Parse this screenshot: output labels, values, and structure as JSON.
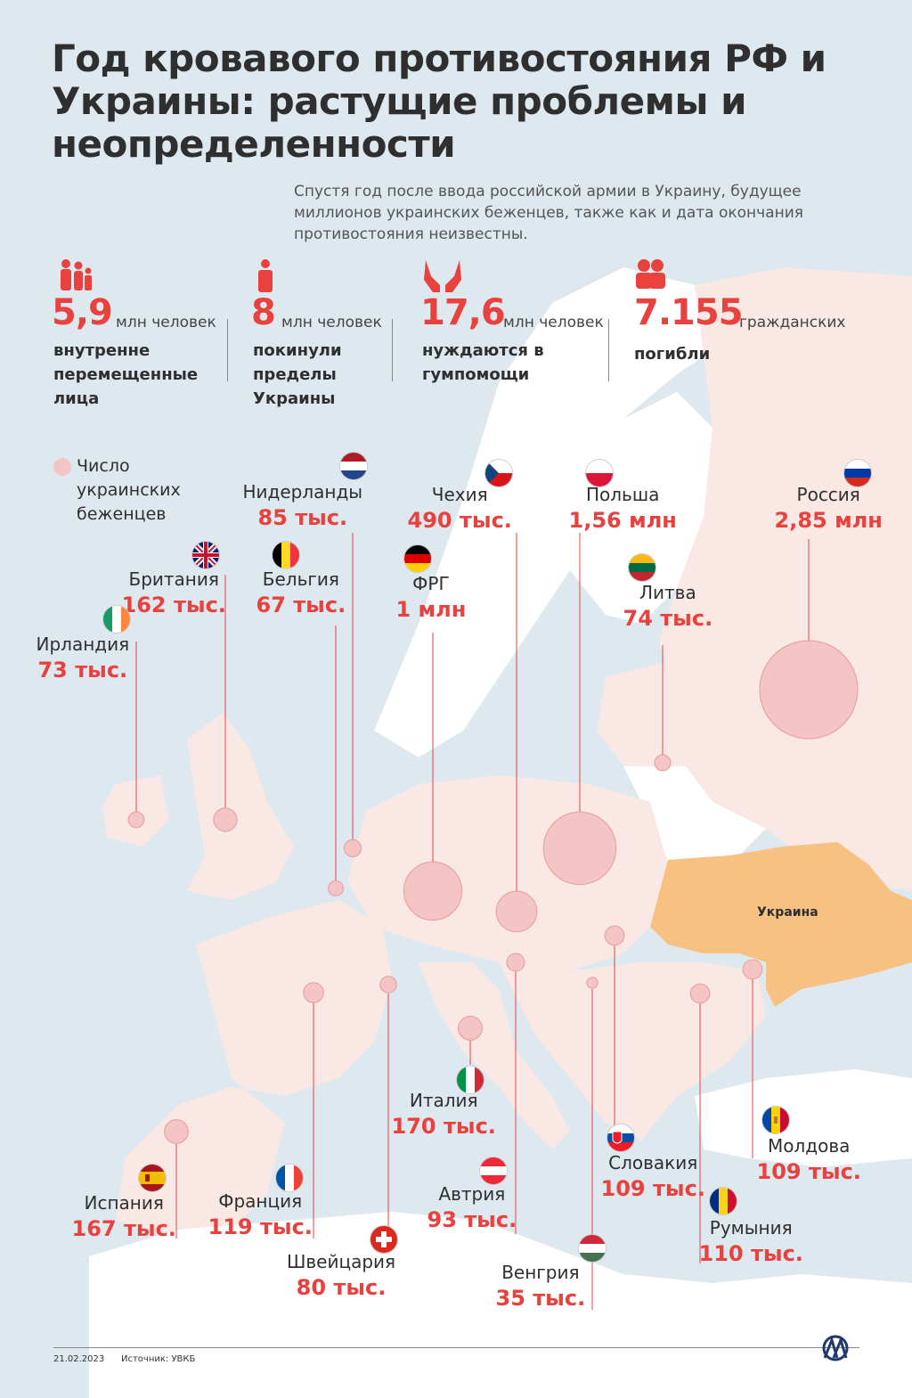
{
  "title": "Год кровавого противостояния РФ и Украины: растущие проблемы и неопределенности",
  "subtitle": "Спустя год после ввода российской армии в Украину, будущее миллионов украинских беженцев, также как и дата окончания противостояния неизвестны.",
  "stats": [
    {
      "value": "5,9",
      "unit": "млн человек",
      "label": "внутренне перемещенные лица",
      "icon": "family-icon"
    },
    {
      "value": "8",
      "unit": "млн человек",
      "label": "покинули пределы Украины",
      "icon": "person-luggage-icon"
    },
    {
      "value": "17,6",
      "unit": "млн человек",
      "label": "нуждаются в гумпомощи",
      "icon": "hands-icon"
    },
    {
      "value": "7.155",
      "unit": "гражданских",
      "label": "погибли",
      "icon": "people-icon"
    }
  ],
  "legend": {
    "label": "Число украинских беженцев"
  },
  "map_label": "Украина",
  "countries": [
    {
      "name": "Нидерланды",
      "value": "85 тыс.",
      "flag": "netherlands",
      "refugees_thousands": 85
    },
    {
      "name": "Чехия",
      "value": "490 тыс.",
      "flag": "czechia",
      "refugees_thousands": 490
    },
    {
      "name": "Польша",
      "value": "1,56 млн",
      "flag": "poland",
      "refugees_thousands": 1560
    },
    {
      "name": "Россия",
      "value": "2,85 млн",
      "flag": "russia",
      "refugees_thousands": 2850
    },
    {
      "name": "Британия",
      "value": "162 тыс.",
      "flag": "uk",
      "refugees_thousands": 162
    },
    {
      "name": "Бельгия",
      "value": "67 тыс.",
      "flag": "belgium",
      "refugees_thousands": 67
    },
    {
      "name": "ФРГ",
      "value": "1 млн",
      "flag": "germany",
      "refugees_thousands": 1000
    },
    {
      "name": "Литва",
      "value": "74 тыс.",
      "flag": "lithuania",
      "refugees_thousands": 74
    },
    {
      "name": "Ирландия",
      "value": "73 тыс.",
      "flag": "ireland",
      "refugees_thousands": 73
    },
    {
      "name": "Италия",
      "value": "170 тыс.",
      "flag": "italy",
      "refugees_thousands": 170
    },
    {
      "name": "Молдова",
      "value": "109 тыс.",
      "flag": "moldova",
      "refugees_thousands": 109
    },
    {
      "name": "Словакия",
      "value": "109 тыс.",
      "flag": "slovakia",
      "refugees_thousands": 109
    },
    {
      "name": "Испания",
      "value": "167 тыс.",
      "flag": "spain",
      "refugees_thousands": 167
    },
    {
      "name": "Франция",
      "value": "119 тыс.",
      "flag": "france",
      "refugees_thousands": 119
    },
    {
      "name": "Автрия",
      "value": "93 тыс.",
      "flag": "austria",
      "refugees_thousands": 93
    },
    {
      "name": "Румыния",
      "value": "110 тыс.",
      "flag": "romania",
      "refugees_thousands": 110
    },
    {
      "name": "Швейцария",
      "value": "80 тыс.",
      "flag": "switzerland",
      "refugees_thousands": 80
    },
    {
      "name": "Венгрия",
      "value": "35 тыс.",
      "flag": "hungary",
      "refugees_thousands": 35
    }
  ],
  "footer": {
    "date": "21.02.2023",
    "source": "Источник: УВКБ"
  },
  "colors": {
    "accent": "#e8413e",
    "ukraine": "#f7c181",
    "bubble": "#f5c4c4",
    "europe": "#fae8e4",
    "land": "#ffffff",
    "sea": "#dde8ef"
  }
}
